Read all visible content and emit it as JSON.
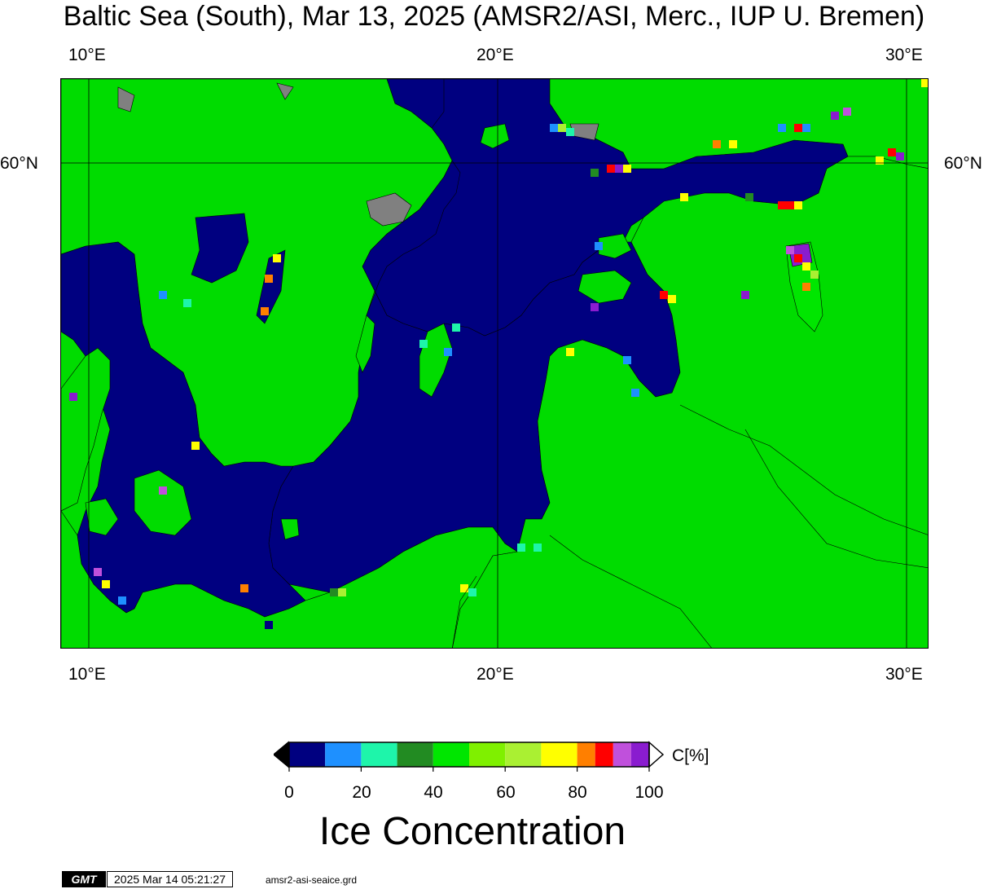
{
  "title": "Baltic Sea (South), Mar 13, 2025 (AMSR2/ASI, Merc., IUP U. Bremen)",
  "map": {
    "lon_ticks_top": [
      "10°E",
      "20°E",
      "30°E"
    ],
    "lon_ticks_bottom": [
      "10°E",
      "20°E",
      "30°E"
    ],
    "lat_tick_left": "60°N",
    "lat_tick_right": "60°N",
    "colors": {
      "sea_open_water": "#000080",
      "land": "#00dc00",
      "land_mask_gray": "#808080",
      "coastline": "#000000"
    }
  },
  "colorbar": {
    "unit_label": "C[%]",
    "tick_labels": [
      "0",
      "20",
      "40",
      "60",
      "80",
      "100"
    ],
    "range": [
      0,
      100
    ],
    "bins": [
      {
        "from": 0,
        "to": 10,
        "color": "#000080"
      },
      {
        "from": 10,
        "to": 20,
        "color": "#1e90ff"
      },
      {
        "from": 20,
        "to": 30,
        "color": "#1ef5aa"
      },
      {
        "from": 30,
        "to": 40,
        "color": "#228b22"
      },
      {
        "from": 40,
        "to": 50,
        "color": "#00e600"
      },
      {
        "from": 50,
        "to": 60,
        "color": "#7ff000"
      },
      {
        "from": 60,
        "to": 70,
        "color": "#aaf032"
      },
      {
        "from": 70,
        "to": 80,
        "color": "#ffff00"
      },
      {
        "from": 80,
        "to": 85,
        "color": "#ff7f00"
      },
      {
        "from": 85,
        "to": 90,
        "color": "#ff0000"
      },
      {
        "from": 90,
        "to": 95,
        "color": "#c050dc"
      },
      {
        "from": 95,
        "to": 100,
        "color": "#8a1ccf"
      }
    ],
    "under_color": "#000000",
    "over_color": "#ffffff"
  },
  "caption": "Ice Concentration",
  "footer": {
    "logo_text": "GMT",
    "timestamp": "2025 Mar 14 05:21:27",
    "filename": "amsr2-asi-seaice.grd"
  }
}
